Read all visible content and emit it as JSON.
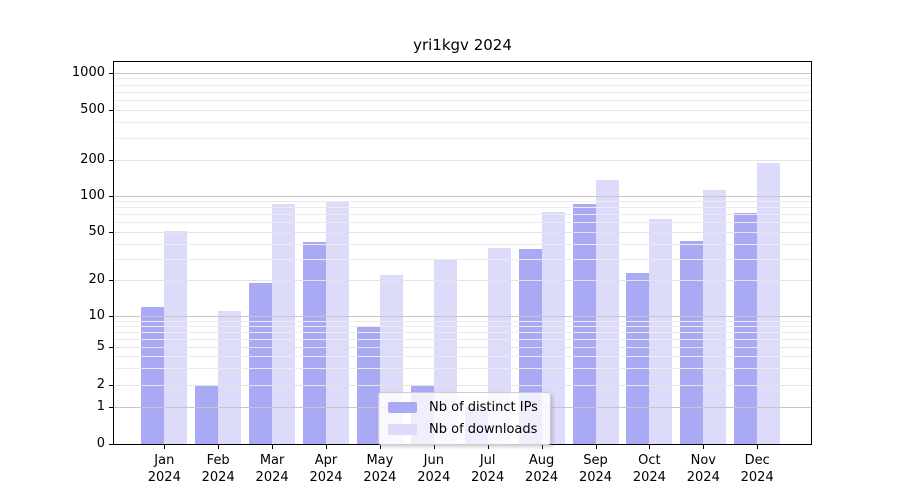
{
  "title": "yri1kgv 2024",
  "chart_data": {
    "type": "bar",
    "title": "yri1kgv 2024",
    "categories": [
      "Jan",
      "Feb",
      "Mar",
      "Apr",
      "May",
      "Jun",
      "Jul",
      "Aug",
      "Sep",
      "Oct",
      "Nov",
      "Dec"
    ],
    "year_label": "2024",
    "series": [
      {
        "name": "Nb of distinct IPs",
        "color": "#a9a9f4",
        "values": [
          12,
          2,
          19,
          41,
          8,
          2,
          1,
          36,
          85,
          23,
          42,
          72
        ]
      },
      {
        "name": "Nb of downloads",
        "color": "#dcdcfa",
        "values": [
          51,
          11,
          85,
          90,
          22,
          30,
          37,
          73,
          135,
          64,
          111,
          190
        ]
      }
    ],
    "yticks": [
      0,
      1,
      2,
      5,
      10,
      20,
      50,
      100,
      200,
      500,
      1000
    ],
    "ylim": [
      0,
      1000
    ],
    "yscale": "symlog",
    "grid": true,
    "legend_position": "lower center"
  },
  "colors": {
    "major_grid": "#c6c6c6",
    "minor_grid": "#ececec",
    "labeled_grid": "#e4e4e4",
    "spine": "#000000",
    "background": "#ffffff",
    "legend_border": "#cccccc"
  }
}
